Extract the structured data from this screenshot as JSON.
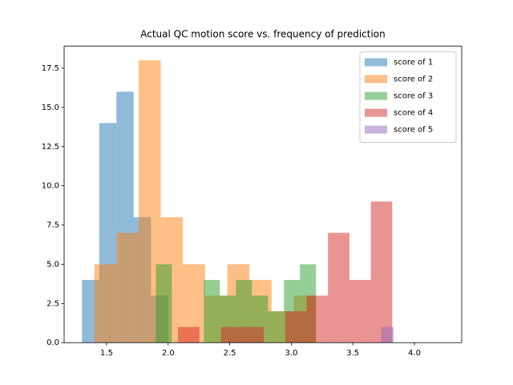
{
  "chart_data": {
    "type": "histogram",
    "title": "Actual QC motion score vs. frequency of prediction",
    "alpha": 0.5,
    "legend": "upper right",
    "series": [
      {
        "name": "score of 1",
        "color": "#1f77b4",
        "bins": [
          1.3,
          1.44,
          1.58,
          1.72,
          1.86,
          2.0
        ],
        "values": [
          4,
          14,
          16,
          8,
          3
        ]
      },
      {
        "name": "score of 2",
        "color": "#ff7f0e",
        "bins": [
          1.4,
          1.58,
          1.76,
          1.94,
          2.12,
          2.3,
          2.48,
          2.66,
          2.84,
          3.02,
          3.2
        ],
        "values": [
          5,
          7,
          18,
          8,
          5,
          3,
          5,
          4,
          2,
          3
        ]
      },
      {
        "name": "score of 3",
        "color": "#2ca02c",
        "bins": [
          1.9,
          2.03,
          2.16,
          2.29,
          2.42,
          2.55,
          2.68,
          2.81,
          2.94,
          3.07,
          3.2
        ],
        "values": [
          5,
          0,
          0,
          4,
          3,
          4,
          3,
          2,
          4,
          5
        ]
      },
      {
        "name": "score of 4",
        "color": "#d62728",
        "bins": [
          2.08,
          2.254,
          2.428,
          2.602,
          2.776,
          2.95,
          3.124,
          3.298,
          3.472,
          3.646,
          3.82
        ],
        "values": [
          1,
          0,
          1,
          1,
          0,
          2,
          3,
          7,
          4,
          9
        ]
      },
      {
        "name": "score of 5",
        "color": "#9467bd",
        "bins": [
          3.73,
          3.83
        ],
        "values": [
          1
        ]
      }
    ],
    "xlim": [
      1.155,
      4.384
    ],
    "xticks": [
      1.5,
      {
        "value": 2.0,
        "label": "2.0"
      },
      2.5,
      {
        "value": 3.0,
        "label": "3.0"
      },
      3.5,
      {
        "value": 4.0,
        "label": "4.0"
      }
    ],
    "ylim": [
      0,
      18.9
    ],
    "yticks": [
      {
        "value": 0,
        "label": "0.0"
      },
      2.5,
      {
        "value": 5,
        "label": "5.0"
      },
      7.5,
      {
        "value": 10,
        "label": "10.0"
      },
      12.5,
      {
        "value": 15,
        "label": "15.0"
      },
      17.5
    ]
  }
}
